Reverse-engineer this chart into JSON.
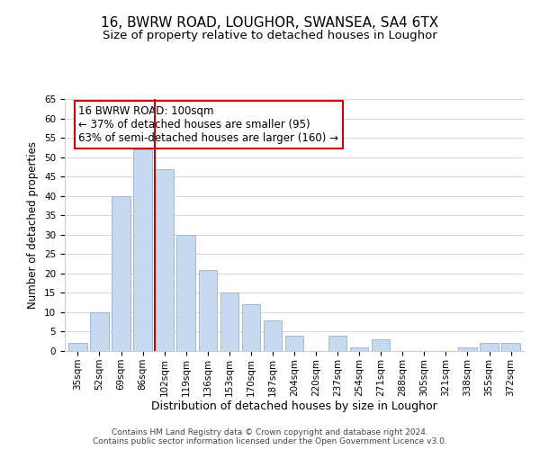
{
  "title": "16, BWRW ROAD, LOUGHOR, SWANSEA, SA4 6TX",
  "subtitle": "Size of property relative to detached houses in Loughor",
  "xlabel": "Distribution of detached houses by size in Loughor",
  "ylabel": "Number of detached properties",
  "categories": [
    "35sqm",
    "52sqm",
    "69sqm",
    "86sqm",
    "102sqm",
    "119sqm",
    "136sqm",
    "153sqm",
    "170sqm",
    "187sqm",
    "204sqm",
    "220sqm",
    "237sqm",
    "254sqm",
    "271sqm",
    "288sqm",
    "305sqm",
    "321sqm",
    "338sqm",
    "355sqm",
    "372sqm"
  ],
  "values": [
    2,
    10,
    40,
    52,
    47,
    30,
    21,
    15,
    12,
    8,
    4,
    0,
    4,
    1,
    3,
    0,
    0,
    0,
    1,
    2,
    2
  ],
  "bar_color": "#c6d9f1",
  "bar_edge_color": "#a0b8d8",
  "vline_x_index": 4,
  "vline_color": "#cc0000",
  "ylim": [
    0,
    65
  ],
  "yticks": [
    0,
    5,
    10,
    15,
    20,
    25,
    30,
    35,
    40,
    45,
    50,
    55,
    60,
    65
  ],
  "annotation_box_text": "16 BWRW ROAD: 100sqm\n← 37% of detached houses are smaller (95)\n63% of semi-detached houses are larger (160) →",
  "annotation_box_edge_color": "#cc0000",
  "footer_line1": "Contains HM Land Registry data © Crown copyright and database right 2024.",
  "footer_line2": "Contains public sector information licensed under the Open Government Licence v3.0.",
  "title_fontsize": 11,
  "subtitle_fontsize": 9.5,
  "xlabel_fontsize": 9,
  "ylabel_fontsize": 8.5,
  "tick_fontsize": 7.5,
  "annotation_fontsize": 8.5,
  "footer_fontsize": 6.5,
  "background_color": "#ffffff",
  "grid_color": "#d0d8e8"
}
